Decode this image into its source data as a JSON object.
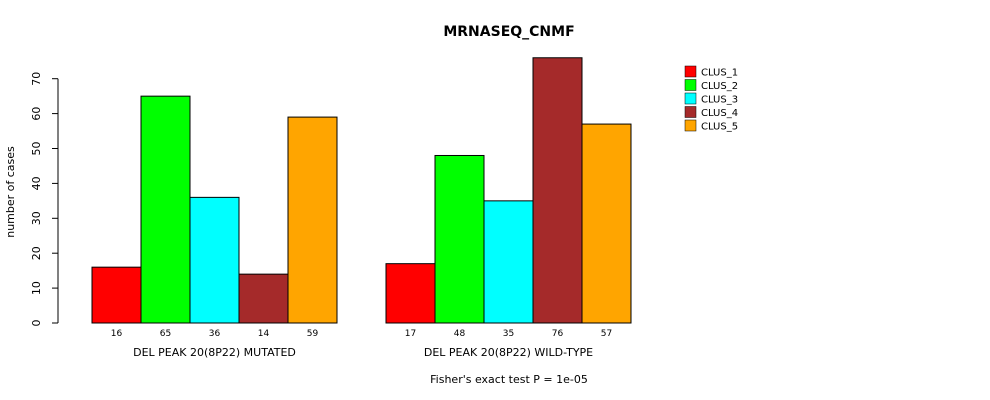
{
  "chart_data": {
    "type": "bar",
    "title": "MRNASEQ_CNMF",
    "ylabel": "number of cases",
    "ylim": [
      0,
      76
    ],
    "yticks": [
      0,
      10,
      20,
      30,
      40,
      50,
      60,
      70
    ],
    "groups": [
      "DEL PEAK 20(8P22) MUTATED",
      "DEL PEAK 20(8P22) WILD-TYPE"
    ],
    "series": [
      {
        "name": "CLUS_1",
        "color": "#ff0000",
        "values": [
          16,
          17
        ]
      },
      {
        "name": "CLUS_2",
        "color": "#00ff00",
        "values": [
          65,
          48
        ]
      },
      {
        "name": "CLUS_3",
        "color": "#00ffff",
        "values": [
          36,
          35
        ]
      },
      {
        "name": "CLUS_4",
        "color": "#a52a2a",
        "values": [
          14,
          76
        ]
      },
      {
        "name": "CLUS_5",
        "color": "#ffa500",
        "values": [
          59,
          57
        ]
      }
    ],
    "legend_position": "top-right",
    "footnote": "Fisher's exact test P = 1e-05"
  }
}
